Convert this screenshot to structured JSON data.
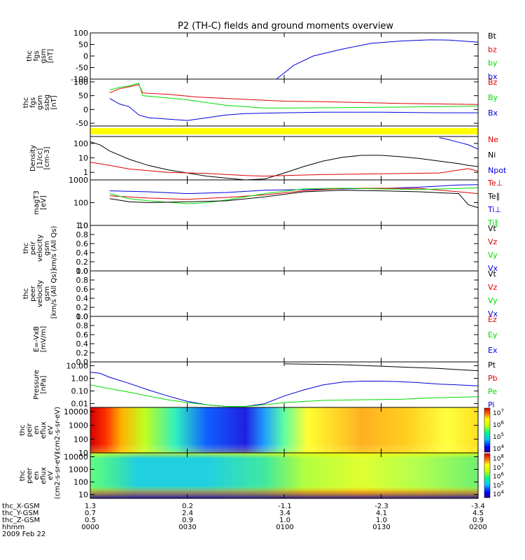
{
  "title": "P2 (TH-C) fields and ground moments overview",
  "time_axis": {
    "row_labels": [
      "thc_X-GSM",
      "thc_Y-GSM",
      "thc_Z-GSM",
      "hhmm",
      "2009 Feb 22"
    ],
    "ticks": [
      {
        "hhmm": "0000",
        "x": "1.3",
        "y": "0.7",
        "z": "0.5"
      },
      {
        "hhmm": "0030",
        "x": "0.2",
        "y": "2.4",
        "z": "0.9"
      },
      {
        "hhmm": "0100",
        "x": "-1.1",
        "y": "3.4",
        "z": "1.0"
      },
      {
        "hhmm": "0130",
        "x": "-2.3",
        "y": "4.1",
        "z": "1.0"
      },
      {
        "hhmm": "0200",
        "x": "-3.4",
        "y": "4.5",
        "z": "0.9"
      }
    ]
  },
  "colors": {
    "black": "#000000",
    "red": "#dd0000",
    "green": "#00dd00",
    "blue": "#0000dd",
    "yellow": "#ffff00"
  },
  "chart_data": [
    {
      "type": "line",
      "panel": "fgs_gse",
      "ylabel": [
        "thc",
        "fgs",
        "gsm",
        "[nT]"
      ],
      "ylim": [
        -100,
        100
      ],
      "yticks": [
        {
          "v": 100,
          "t": "100"
        },
        {
          "v": 50,
          "t": "50"
        },
        {
          "v": 0,
          "t": "0"
        },
        {
          "v": -50,
          "t": "-50"
        },
        {
          "v": -100,
          "t": "-100"
        }
      ],
      "legend": [
        {
          "t": "Bt",
          "c": "black"
        },
        {
          "t": "bz",
          "c": "red"
        },
        {
          "t": "by",
          "c": "green"
        },
        {
          "t": "bx",
          "c": "blue"
        }
      ],
      "series": [
        {
          "c": "blue",
          "x": [
            0.96,
            1.05,
            1.15,
            1.3,
            1.45,
            1.6,
            1.75,
            1.85,
            2.0
          ],
          "y": [
            -100,
            -40,
            0,
            30,
            55,
            65,
            70,
            69,
            60
          ]
        }
      ]
    },
    {
      "type": "line",
      "panel": "fgs_gsm",
      "ylabel": [
        "thc",
        "fgs",
        "gsm",
        "ssbg",
        "[nT]"
      ],
      "ylim": [
        -60,
        110
      ],
      "yticks": [
        {
          "v": 100,
          "t": "100"
        },
        {
          "v": 50,
          "t": "50"
        },
        {
          "v": 0,
          "t": "0"
        },
        {
          "v": -50,
          "t": "-50"
        }
      ],
      "legend": [
        {
          "t": "Bz",
          "c": "red"
        },
        {
          "t": "By",
          "c": "green"
        },
        {
          "t": "Bx",
          "c": "blue"
        }
      ],
      "series": [
        {
          "c": "red",
          "x": [
            0.1,
            0.15,
            0.2,
            0.25,
            0.27,
            0.4,
            0.55,
            0.7,
            0.85,
            1.0,
            1.2,
            1.4,
            1.6,
            1.8,
            2.0
          ],
          "y": [
            60,
            75,
            82,
            90,
            60,
            55,
            45,
            40,
            35,
            30,
            28,
            25,
            22,
            20,
            18
          ]
        },
        {
          "c": "green",
          "x": [
            0.1,
            0.15,
            0.2,
            0.25,
            0.27,
            0.35,
            0.5,
            0.6,
            0.7,
            0.8,
            0.9,
            1.0,
            1.2,
            1.5,
            1.8,
            2.0
          ],
          "y": [
            70,
            80,
            85,
            95,
            50,
            45,
            35,
            25,
            15,
            10,
            5,
            5,
            6,
            8,
            10,
            12
          ]
        },
        {
          "c": "blue",
          "x": [
            0.1,
            0.15,
            0.2,
            0.25,
            0.3,
            0.4,
            0.5,
            0.6,
            0.7,
            0.8,
            1.0,
            1.2,
            1.5,
            1.8,
            2.0
          ],
          "y": [
            40,
            20,
            10,
            -20,
            -30,
            -35,
            -40,
            -30,
            -20,
            -15,
            -12,
            -10,
            -10,
            -12,
            -12
          ]
        }
      ]
    },
    {
      "type": "bar",
      "panel": "mode_bar",
      "color": "yellow"
    },
    {
      "type": "line",
      "panel": "density",
      "log": true,
      "ylabel": [
        "Density",
        "[1/cc]",
        "[cm-3]"
      ],
      "ylim": [
        0.3,
        300
      ],
      "yticks": [
        {
          "v": 100,
          "t": "100"
        },
        {
          "v": 10,
          "t": "10"
        },
        {
          "v": 1,
          "t": "1"
        }
      ],
      "legend": [
        {
          "t": "Ne",
          "c": "red"
        },
        {
          "t": "Ni",
          "c": "black"
        },
        {
          "t": "Npot",
          "c": "blue"
        }
      ],
      "series": [
        {
          "c": "black",
          "x": [
            0,
            0.05,
            0.1,
            0.2,
            0.3,
            0.4,
            0.5,
            0.6,
            0.7,
            0.8,
            0.9,
            1.0,
            1.1,
            1.2,
            1.3,
            1.4,
            1.5,
            1.6,
            1.7,
            1.8,
            1.9,
            1.95,
            2.0
          ],
          "y": [
            130,
            80,
            30,
            8,
            3,
            1.5,
            0.9,
            0.55,
            0.4,
            0.3,
            0.35,
            0.9,
            2.5,
            6,
            11,
            15,
            15,
            12,
            9,
            6,
            4,
            3,
            2.5
          ]
        },
        {
          "c": "red",
          "x": [
            0,
            0.1,
            0.2,
            0.4,
            0.6,
            0.8,
            0.9,
            1.0,
            1.2,
            1.5,
            1.8,
            1.95,
            2.0
          ],
          "y": [
            5,
            3,
            1.7,
            1.0,
            0.85,
            0.6,
            0.55,
            0.6,
            0.7,
            0.8,
            0.9,
            1.8,
            1.2
          ]
        },
        {
          "c": "blue",
          "x": [
            1.8,
            1.85,
            1.9,
            1.95,
            2.0
          ],
          "y": [
            250,
            180,
            120,
            80,
            40
          ]
        }
      ]
    },
    {
      "type": "line",
      "panel": "temperature",
      "log": true,
      "ylabel": [
        "magT3",
        "[eV]"
      ],
      "ylim": [
        10,
        1000
      ],
      "yticks": [
        {
          "v": 1000,
          "t": "1000"
        },
        {
          "v": 100,
          "t": "100"
        },
        {
          "v": 10,
          "t": "10"
        }
      ],
      "legend": [
        {
          "t": "Te⊥",
          "c": "red"
        },
        {
          "t": "Te∥",
          "c": "black"
        },
        {
          "t": "Ti⊥",
          "c": "blue"
        },
        {
          "t": "Ti∥",
          "c": "green"
        }
      ],
      "series": [
        {
          "c": "blue",
          "x": [
            0.1,
            0.3,
            0.5,
            0.7,
            0.9,
            1.1,
            1.3,
            1.5,
            1.7,
            1.9,
            2.0
          ],
          "y": [
            330,
            300,
            250,
            280,
            350,
            380,
            400,
            420,
            480,
            600,
            620
          ]
        },
        {
          "c": "red",
          "x": [
            0.1,
            0.3,
            0.5,
            0.7,
            0.9,
            1.1,
            1.3,
            1.5,
            1.7,
            1.9,
            2.0
          ],
          "y": [
            200,
            160,
            140,
            170,
            220,
            330,
            420,
            430,
            420,
            300,
            250
          ]
        },
        {
          "c": "green",
          "x": [
            0.1,
            0.2,
            0.3,
            0.5,
            0.6,
            0.7,
            0.9,
            1.1,
            1.3,
            1.5,
            1.7,
            1.9,
            2.0
          ],
          "y": [
            250,
            150,
            120,
            90,
            100,
            130,
            250,
            400,
            430,
            400,
            380,
            420,
            450
          ]
        },
        {
          "c": "black",
          "x": [
            0.1,
            0.2,
            0.3,
            0.5,
            0.7,
            0.9,
            1.1,
            1.3,
            1.5,
            1.7,
            1.9,
            1.95,
            2.0
          ],
          "y": [
            150,
            110,
            100,
            110,
            120,
            180,
            300,
            350,
            330,
            300,
            250,
            80,
            60
          ]
        }
      ]
    },
    {
      "type": "line",
      "panel": "ion_velocity",
      "ylabel": [
        "thc",
        "peir",
        "velocity",
        "gsm",
        "km/s (All Qs)"
      ],
      "ylim": [
        0,
        1
      ],
      "yticks": [
        {
          "v": 1,
          "t": "1.0"
        },
        {
          "v": 0.8,
          "t": "0.8"
        },
        {
          "v": 0.6,
          "t": "0.6"
        },
        {
          "v": 0.4,
          "t": "0.4"
        },
        {
          "v": 0.2,
          "t": "0.2"
        },
        {
          "v": 0,
          "t": "0.0"
        }
      ],
      "legend": [
        {
          "t": "Vt",
          "c": "black"
        },
        {
          "t": "Vz",
          "c": "red"
        },
        {
          "t": "Vy",
          "c": "green"
        },
        {
          "t": "Vx",
          "c": "blue"
        }
      ],
      "series": []
    },
    {
      "type": "line",
      "panel": "electron_velocity",
      "ylabel": [
        "thc",
        "peer",
        "velocity",
        "gsm",
        "[km/s (All Qs)]"
      ],
      "ylim": [
        0,
        1
      ],
      "yticks": [
        {
          "v": 1,
          "t": "1.0"
        },
        {
          "v": 0.8,
          "t": "0.8"
        },
        {
          "v": 0.6,
          "t": "0.6"
        },
        {
          "v": 0.4,
          "t": "0.4"
        },
        {
          "v": 0.2,
          "t": "0.2"
        },
        {
          "v": 0,
          "t": "0.0"
        }
      ],
      "legend": [
        {
          "t": "Vt",
          "c": "black"
        },
        {
          "t": "Vz",
          "c": "red"
        },
        {
          "t": "Vy",
          "c": "green"
        },
        {
          "t": "Vx",
          "c": "blue"
        }
      ],
      "series": []
    },
    {
      "type": "line",
      "panel": "e_field",
      "ylabel": [
        "E=-VxB",
        "[mV/m]"
      ],
      "ylim": [
        0,
        1
      ],
      "yticks": [
        {
          "v": 1,
          "t": "1.0"
        },
        {
          "v": 0.8,
          "t": "0.8"
        },
        {
          "v": 0.6,
          "t": "0.6"
        },
        {
          "v": 0.4,
          "t": "0.4"
        },
        {
          "v": 0.2,
          "t": "0.2"
        },
        {
          "v": 0,
          "t": "0.0"
        }
      ],
      "legend": [
        {
          "t": "Ez",
          "c": "red"
        },
        {
          "t": "Ey",
          "c": "green"
        },
        {
          "t": "Ex",
          "c": "blue"
        }
      ],
      "series": []
    },
    {
      "type": "line",
      "panel": "pressure",
      "log": true,
      "ylabel": [
        "Pressure",
        "[nPa]"
      ],
      "ylim": [
        0.005,
        20
      ],
      "yticks": [
        {
          "v": 10,
          "t": "10.00"
        },
        {
          "v": 1,
          "t": "1.00"
        },
        {
          "v": 0.1,
          "t": "0.10"
        },
        {
          "v": 0.01,
          "t": "0.01"
        }
      ],
      "legend": [
        {
          "t": "Pt",
          "c": "black"
        },
        {
          "t": "Pb",
          "c": "red"
        },
        {
          "t": "Pe",
          "c": "green"
        },
        {
          "t": "Pi",
          "c": "blue"
        }
      ],
      "series": [
        {
          "c": "blue",
          "x": [
            0,
            0.05,
            0.1,
            0.2,
            0.3,
            0.4,
            0.5,
            0.6,
            0.7,
            0.8,
            0.9,
            1.0,
            1.1,
            1.2,
            1.3,
            1.4,
            1.5,
            1.6,
            1.7,
            1.8,
            1.9,
            2.0
          ],
          "y": [
            3,
            2.5,
            1.2,
            0.4,
            0.12,
            0.04,
            0.015,
            0.008,
            0.006,
            0.006,
            0.01,
            0.04,
            0.12,
            0.3,
            0.5,
            0.6,
            0.6,
            0.55,
            0.45,
            0.35,
            0.3,
            0.25
          ]
        },
        {
          "c": "green",
          "x": [
            0,
            0.1,
            0.2,
            0.3,
            0.4,
            0.5,
            0.6,
            0.7,
            0.8,
            0.9,
            1.0,
            1.2,
            1.4,
            1.6,
            1.8,
            2.0
          ],
          "y": [
            0.3,
            0.15,
            0.08,
            0.04,
            0.02,
            0.012,
            0.008,
            0.006,
            0.006,
            0.008,
            0.012,
            0.018,
            0.02,
            0.022,
            0.03,
            0.035
          ]
        },
        {
          "c": "black",
          "x": [
            1.0,
            1.3,
            1.6,
            1.8,
            2.0
          ],
          "y": [
            14,
            12,
            8,
            6,
            4
          ]
        }
      ]
    },
    {
      "type": "heatmap",
      "panel": "ion_spectrogram",
      "log": true,
      "ylabel": [
        "thc",
        "peir",
        "en",
        "eflux",
        "eV",
        "(cm2-s-sr-eV)"
      ],
      "ylim": [
        10,
        20000
      ],
      "yticks": [
        {
          "v": 10000,
          "t": "10000"
        },
        {
          "v": 1000,
          "t": "1000"
        },
        {
          "v": 100,
          "t": "100"
        },
        {
          "v": 10,
          "t": "10"
        }
      ],
      "colorbar": [
        {
          "t": "10",
          "s": "7"
        },
        {
          "t": "10",
          "s": "6"
        },
        {
          "t": "10",
          "s": "5"
        },
        {
          "t": "10",
          "s": "4"
        }
      ]
    },
    {
      "type": "heatmap",
      "panel": "electron_spectrogram",
      "log": true,
      "ylabel": [
        "thc",
        "peer",
        "en",
        "eflux",
        "eV",
        "(cm2-s-sr-eV)"
      ],
      "ylim": [
        5,
        20000
      ],
      "yticks": [
        {
          "v": 10000,
          "t": "10000"
        },
        {
          "v": 1000,
          "t": "1000"
        },
        {
          "v": 100,
          "t": "100"
        },
        {
          "v": 10,
          "t": "10"
        }
      ],
      "colorbar": [
        {
          "t": "10",
          "s": "8"
        },
        {
          "t": "10",
          "s": "7"
        },
        {
          "t": "10",
          "s": "6"
        },
        {
          "t": "10",
          "s": "5"
        },
        {
          "t": "10",
          "s": "4"
        }
      ]
    }
  ]
}
